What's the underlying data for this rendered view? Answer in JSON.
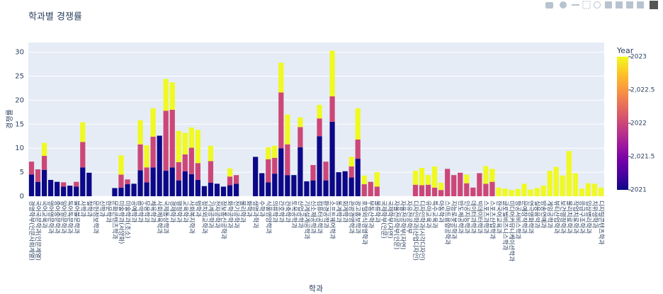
{
  "chart_data": {
    "type": "bar",
    "stacked": true,
    "title": "학과별 경쟁률",
    "xlabel": "학과",
    "ylabel": "경쟁률",
    "categories": [
      "경영학부(인문사회계열)",
      "국어국문학과(인문계열)",
      "국어교육과",
      "영어영문학과",
      "중어중문학과",
      "일어일문학과",
      "독어독문학과",
      "불어불문학과",
      "사학과",
      "철학과",
      "문헌정보학과",
      "신학과",
      "한문학과",
      "문화콘텐츠학과",
      "미술학과(서양화)",
      "미술학과(조소)",
      "공예학과",
      "음악학과",
      "무용학과",
      "체육학과",
      "사회체육학과",
      "국제통상학과",
      "경제학과",
      "행정학과",
      "교육학과",
      "사회복지학과",
      "법학과",
      "정치외교학과",
      "기계공학과",
      "전자공학과",
      "정보통신공학과",
      "화학공학과",
      "전기공학과",
      "물리학과",
      "화학과",
      "생명과학과",
      "수학과",
      "식품영양학과",
      "의류학과",
      "간호학과",
      "건축학과",
      "토목공학과",
      "산업공학과",
      "기계설계공학과",
      "신소재공학과",
      "컴퓨터공학과",
      "환경공학과",
      "소프트웨어학과",
      "통계학과",
      "회계학과",
      "관광경영학과",
      "광고홍보학과",
      "호텔외식경영학과",
      "부동산학과",
      "물류학과",
      "국제학부(인문)",
      "국제학부(자연)",
      "자율전공학부(인문)",
      "자율전공학부(자연)",
      "자유전공학부",
      "디자인학과(산업디자인)",
      "디자인학과(시각디자인)",
      "유아교육과",
      "특수교육과",
      "아동학과",
      "스마트융합공학과",
      "지능로봇공학과",
      "반도체공학과",
      "인공지능학과",
      "데이터과학과",
      "빅데이터학과",
      "스포츠과학과",
      "스포츠산업학과",
      "한국어교육과",
      "글로벌비즈니스학과",
      "미디어커뮤니케이션학과",
      "항공서비스학과",
      "문예창작학과",
      "연극영화학과",
      "실용음악과",
      "방송연예과",
      "게임공학과",
      "뷰티산업학과",
      "보건행정학과",
      "물리치료학과",
      "작업치료학과",
      "응급구조학과",
      "임상병리학과",
      "치위생학과",
      "디지털콘텐츠학과"
    ],
    "series": [
      {
        "name": "2021",
        "color": "#0d0887",
        "values": [
          4.5,
          3.0,
          5.5,
          3.4,
          3.0,
          2.0,
          2.2,
          2.0,
          6.0,
          4.9,
          null,
          null,
          null,
          1.7,
          1.8,
          2.5,
          2.6,
          5.4,
          2.9,
          6.0,
          12.6,
          5.3,
          6.0,
          3.3,
          5.2,
          4.6,
          3.4,
          2.1,
          2.8,
          2.6,
          2.0,
          2.3,
          2.6,
          null,
          null,
          8.2,
          4.8,
          2.9,
          4.7,
          10.0,
          4.4,
          4.4,
          10.2,
          3.1,
          3.3,
          12.5,
          3.3,
          15.5,
          5.0,
          5.2,
          3.9,
          7.8,
          null,
          null,
          null,
          null,
          null,
          null,
          null,
          null,
          null,
          null,
          null,
          null,
          null,
          null,
          null,
          null,
          null,
          null,
          null,
          null,
          null,
          null,
          null,
          null,
          null,
          null,
          null,
          null,
          null,
          null,
          null,
          null,
          null,
          null,
          null,
          null,
          null,
          null
        ]
      },
      {
        "name": "2022",
        "color": "#cc4778",
        "values": [
          2.7,
          2.6,
          2.9,
          null,
          null,
          0.9,
          null,
          1.0,
          5.3,
          null,
          null,
          null,
          null,
          null,
          2.7,
          1.0,
          null,
          5.4,
          3.1,
          6.4,
          null,
          12.5,
          12.0,
          3.8,
          3.5,
          5.5,
          3.5,
          null,
          4.5,
          null,
          null,
          1.8,
          1.8,
          null,
          null,
          null,
          null,
          4.8,
          3.3,
          11.6,
          6.4,
          null,
          4.2,
          null,
          3.2,
          3.7,
          3.9,
          5.3,
          null,
          null,
          2.3,
          4.0,
          2.5,
          3.0,
          2.0,
          null,
          null,
          null,
          null,
          null,
          2.4,
          2.3,
          2.4,
          1.8,
          1.3,
          5.7,
          4.4,
          4.9,
          2.7,
          1.8,
          4.8,
          2.6,
          3.0,
          null,
          null,
          null,
          null,
          null,
          null,
          null,
          null,
          null,
          null,
          null,
          null,
          null,
          null,
          null,
          null,
          null
        ]
      },
      {
        "name": "2023",
        "color": "#f0f921",
        "values": [
          null,
          null,
          2.7,
          null,
          null,
          null,
          null,
          null,
          4.1,
          null,
          null,
          null,
          null,
          null,
          4.0,
          null,
          null,
          5.0,
          4.6,
          5.9,
          null,
          6.6,
          5.7,
          6.5,
          4.5,
          4.2,
          6.9,
          null,
          3.2,
          null,
          null,
          1.7,
          null,
          null,
          null,
          null,
          null,
          2.5,
          2.5,
          6.2,
          6.2,
          null,
          2.0,
          null,
          null,
          2.8,
          null,
          9.5,
          null,
          null,
          2.0,
          6.5,
          1.8,
          null,
          3.0,
          null,
          null,
          null,
          null,
          null,
          2.9,
          3.6,
          2.0,
          4.4,
          1.5,
          null,
          null,
          null,
          1.8,
          null,
          null,
          3.7,
          2.7,
          1.8,
          1.6,
          1.3,
          1.5,
          2.6,
          1.4,
          1.7,
          2.2,
          5.3,
          6.1,
          4.3,
          9.4,
          4.8,
          1.6,
          2.7,
          2.6,
          1.8
        ]
      }
    ],
    "ylim": [
      0,
      32
    ],
    "yticks": [
      0,
      5,
      10,
      15,
      20,
      25,
      30
    ],
    "grid": true,
    "colorbar": {
      "title": "Year",
      "range": [
        2021,
        2023
      ],
      "ticks": [
        2021,
        {
          "value": 2021.5,
          "label": "2,021.5"
        },
        2022,
        {
          "value": 2022.5,
          "label": "2,022.5"
        },
        2023
      ],
      "colorscale": [
        "#0d0887",
        "#46039f",
        "#7201a8",
        "#9c179e",
        "#bd3786",
        "#d8576b",
        "#ed7953",
        "#fb9f3a",
        "#fdca26",
        "#f0f921"
      ]
    }
  }
}
